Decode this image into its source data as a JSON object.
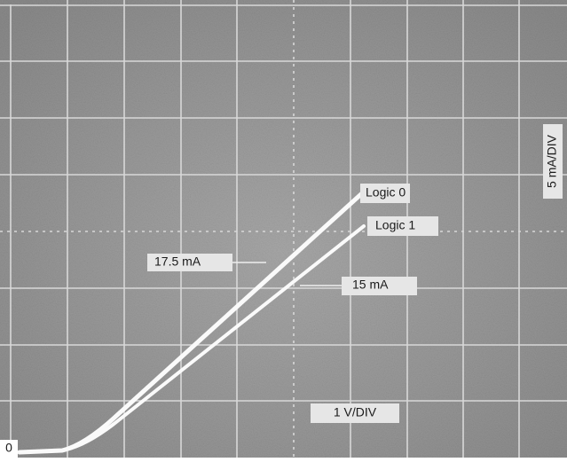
{
  "labels": {
    "logic0": "Logic 0",
    "logic1": "Logic 1",
    "current_high": "17.5 mA",
    "current_low": "15 mA",
    "y_scale": "5 mA/DIV",
    "x_scale": "1 V/DIV",
    "origin": "0"
  }
}
